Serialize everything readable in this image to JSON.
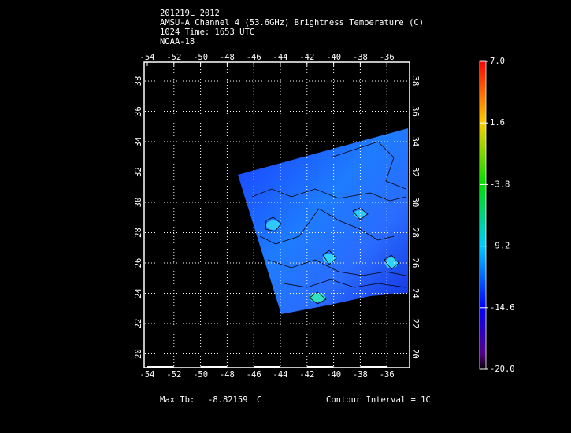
{
  "header": {
    "lines": [
      "201219L 2012",
      "AMSU-A Channel 4 (53.6GHz) Brightness Temperature (C)",
      "1024 Time: 1653 UTC",
      "NOAA-18"
    ]
  },
  "map": {
    "lon_labels": [
      "-54",
      "-52",
      "-50",
      "-48",
      "-46",
      "-44",
      "-42",
      "-40",
      "-38",
      "-36"
    ],
    "lat_labels": [
      "38",
      "36",
      "34",
      "32",
      "30",
      "28",
      "26",
      "24",
      "22",
      "20"
    ]
  },
  "colorbar": {
    "labels": [
      "7.0",
      "1.6",
      "-3.8",
      "-9.2",
      "-14.6",
      "-20.0"
    ]
  },
  "footer": {
    "max_label": "Max Tb:",
    "max_value": "-8.82159",
    "unit": "C",
    "contour": "Contour Interval = 1C"
  }
}
